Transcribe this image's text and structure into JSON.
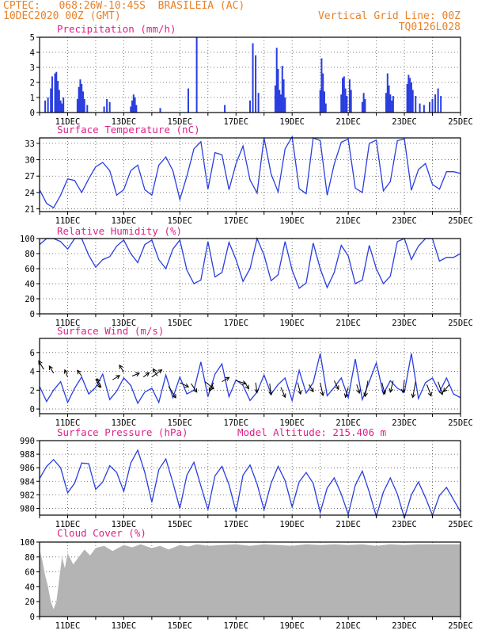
{
  "header": {
    "left_line1": "CPTEC:   068:26W-10:45S  BRASILEIA (AC)",
    "left_line2": "10DEC2020 00Z (GMT)",
    "right_line1": "Vertical Grid Line: 00Z",
    "right_line2": "TQ0126L028"
  },
  "x_tick_labels": [
    "11DEC",
    "13DEC",
    "15DEC",
    "17DEC",
    "19DEC",
    "21DEC",
    "23DEC",
    "25DEC"
  ],
  "colors": {
    "series": "#2a3ee0",
    "bars": "#2a3ee0",
    "cloud": "#b4b4b4",
    "title": "#e0208a",
    "header": "#e8822a"
  },
  "chart_data": [
    {
      "type": "bar",
      "title": "Precipitation (mm/h)",
      "ylim": [
        0,
        5
      ],
      "yticks": [
        0,
        1,
        2,
        3,
        4,
        5
      ],
      "x_unit": "days since 10DEC2020 00Z",
      "bars": [
        [
          0.2,
          0.8
        ],
        [
          0.3,
          1.0
        ],
        [
          0.4,
          1.6
        ],
        [
          0.45,
          2.4
        ],
        [
          0.55,
          2.6
        ],
        [
          0.6,
          2.7
        ],
        [
          0.65,
          2.1
        ],
        [
          0.7,
          1.5
        ],
        [
          0.75,
          0.8
        ],
        [
          0.8,
          0.6
        ],
        [
          0.85,
          1.0
        ],
        [
          1.35,
          0.9
        ],
        [
          1.4,
          1.7
        ],
        [
          1.45,
          2.2
        ],
        [
          1.5,
          1.9
        ],
        [
          1.55,
          1.4
        ],
        [
          1.6,
          0.9
        ],
        [
          1.7,
          0.5
        ],
        [
          2.3,
          0.4
        ],
        [
          2.4,
          0.9
        ],
        [
          2.5,
          0.7
        ],
        [
          3.25,
          0.4
        ],
        [
          3.3,
          0.8
        ],
        [
          3.35,
          1.2
        ],
        [
          3.4,
          1.0
        ],
        [
          3.45,
          0.5
        ],
        [
          4.3,
          0.3
        ],
        [
          5.3,
          1.6
        ],
        [
          5.6,
          5.0
        ],
        [
          6.6,
          0.5
        ],
        [
          7.5,
          0.8
        ],
        [
          7.6,
          4.6
        ],
        [
          7.7,
          3.8
        ],
        [
          7.8,
          1.3
        ],
        [
          8.4,
          1.8
        ],
        [
          8.45,
          4.3
        ],
        [
          8.5,
          2.9
        ],
        [
          8.55,
          1.5
        ],
        [
          8.6,
          1.2
        ],
        [
          8.65,
          3.1
        ],
        [
          8.7,
          2.2
        ],
        [
          8.75,
          1.0
        ],
        [
          10.0,
          1.5
        ],
        [
          10.05,
          3.6
        ],
        [
          10.1,
          2.6
        ],
        [
          10.15,
          1.4
        ],
        [
          10.2,
          0.6
        ],
        [
          10.75,
          1.2
        ],
        [
          10.8,
          2.3
        ],
        [
          10.85,
          2.4
        ],
        [
          10.9,
          1.6
        ],
        [
          10.95,
          1.1
        ],
        [
          11.05,
          2.2
        ],
        [
          11.1,
          1.5
        ],
        [
          11.5,
          0.7
        ],
        [
          11.55,
          1.3
        ],
        [
          11.6,
          0.9
        ],
        [
          12.35,
          1.3
        ],
        [
          12.4,
          2.6
        ],
        [
          12.45,
          1.8
        ],
        [
          12.5,
          1.2
        ],
        [
          12.55,
          0.8
        ],
        [
          12.6,
          1.1
        ],
        [
          13.1,
          1.9
        ],
        [
          13.15,
          2.5
        ],
        [
          13.2,
          2.3
        ],
        [
          13.25,
          2.0
        ],
        [
          13.3,
          1.5
        ],
        [
          13.4,
          1.1
        ],
        [
          13.55,
          0.6
        ],
        [
          13.7,
          0.5
        ],
        [
          13.9,
          0.7
        ],
        [
          14.0,
          0.9
        ],
        [
          14.1,
          1.2
        ],
        [
          14.2,
          1.6
        ],
        [
          14.3,
          1.1
        ]
      ]
    },
    {
      "type": "line",
      "title": "Surface Temperature (nC)",
      "ylim": [
        20.5,
        34
      ],
      "yticks": [
        21,
        24,
        27,
        30,
        33
      ],
      "x": [
        0,
        0.25,
        0.5,
        0.75,
        1,
        1.25,
        1.5,
        1.75,
        2,
        2.25,
        2.5,
        2.75,
        3,
        3.25,
        3.5,
        3.75,
        4,
        4.25,
        4.5,
        4.75,
        5,
        5.25,
        5.5,
        5.75,
        6,
        6.25,
        6.5,
        6.75,
        7,
        7.25,
        7.5,
        7.75,
        8,
        8.25,
        8.5,
        8.75,
        9,
        9.25,
        9.5,
        9.75,
        10,
        10.25,
        10.5,
        10.75,
        11,
        11.25,
        11.5,
        11.75,
        12,
        12.25,
        12.5,
        12.75,
        13,
        13.25,
        13.5,
        13.75,
        14,
        14.25,
        14.5,
        14.75,
        15
      ],
      "y": [
        24.5,
        22.0,
        21.2,
        23.5,
        26.5,
        26.2,
        24.0,
        26.5,
        28.7,
        29.5,
        28.0,
        23.5,
        24.5,
        28.0,
        29.0,
        24.5,
        23.5,
        29.0,
        30.5,
        28.0,
        22.7,
        27.0,
        32.0,
        33.3,
        24.6,
        31.3,
        30.9,
        24.5,
        29.3,
        32.5,
        26.3,
        23.9,
        34.0,
        27.4,
        24.1,
        32.0,
        34.2,
        24.7,
        23.8,
        34.0,
        33.5,
        23.5,
        29.2,
        33.2,
        33.8,
        24.8,
        24.0,
        33.0,
        33.6,
        24.3,
        26.0,
        33.5,
        33.8,
        24.4,
        28.2,
        29.3,
        25.5,
        24.6,
        27.8,
        27.8,
        27.5
      ]
    },
    {
      "type": "line",
      "title": "Relative Humidity (%)",
      "ylim": [
        0,
        100
      ],
      "yticks": [
        0,
        20,
        40,
        60,
        80,
        100
      ],
      "x": [
        0,
        0.25,
        0.5,
        0.75,
        1,
        1.25,
        1.5,
        1.75,
        2,
        2.25,
        2.5,
        2.75,
        3,
        3.25,
        3.5,
        3.75,
        4,
        4.25,
        4.5,
        4.75,
        5,
        5.25,
        5.5,
        5.75,
        6,
        6.25,
        6.5,
        6.75,
        7,
        7.25,
        7.5,
        7.75,
        8,
        8.25,
        8.5,
        8.75,
        9,
        9.25,
        9.5,
        9.75,
        10,
        10.25,
        10.5,
        10.75,
        11,
        11.25,
        11.5,
        11.75,
        12,
        12.25,
        12.5,
        12.75,
        13,
        13.25,
        13.5,
        13.75,
        14,
        14.25,
        14.5,
        14.75,
        15
      ],
      "y": [
        92,
        100,
        100,
        96,
        86,
        100,
        100,
        78,
        62,
        72,
        76,
        90,
        98,
        80,
        68,
        92,
        98,
        72,
        60,
        86,
        98,
        58,
        40,
        45,
        96,
        49,
        55,
        95,
        72,
        43,
        60,
        100,
        78,
        44,
        52,
        96,
        58,
        34,
        41,
        94,
        60,
        35,
        55,
        91,
        77,
        40,
        45,
        91,
        60,
        40,
        50,
        96,
        100,
        72,
        90,
        100,
        100,
        70,
        75,
        75,
        80
      ]
    },
    {
      "type": "line",
      "title": "Surface Wind (m/s)",
      "ylim": [
        -0.5,
        7.5
      ],
      "yticks": [
        0,
        2,
        4,
        6
      ],
      "x": [
        0,
        0.25,
        0.5,
        0.75,
        1,
        1.25,
        1.5,
        1.75,
        2,
        2.25,
        2.5,
        2.75,
        3,
        3.25,
        3.5,
        3.75,
        4,
        4.25,
        4.5,
        4.75,
        5,
        5.25,
        5.5,
        5.75,
        6,
        6.25,
        6.5,
        6.75,
        7,
        7.25,
        7.5,
        7.75,
        8,
        8.25,
        8.5,
        8.75,
        9,
        9.25,
        9.5,
        9.75,
        10,
        10.25,
        10.5,
        10.75,
        11,
        11.25,
        11.5,
        11.75,
        12,
        12.25,
        12.5,
        12.75,
        13,
        13.25,
        13.5,
        13.75,
        14,
        14.25,
        14.5,
        14.75,
        15
      ],
      "y": [
        2.4,
        0.8,
        2.0,
        2.9,
        0.7,
        2.2,
        3.4,
        1.6,
        2.3,
        3.7,
        1.0,
        1.9,
        3.3,
        2.5,
        0.6,
        1.8,
        2.2,
        0.7,
        3.6,
        1.2,
        3.4,
        1.6,
        2.0,
        5.0,
        1.3,
        3.7,
        4.8,
        1.3,
        3.1,
        2.5,
        0.9,
        1.8,
        3.6,
        1.6,
        2.6,
        3.3,
        0.9,
        4.1,
        1.7,
        2.8,
        5.9,
        1.4,
        2.3,
        3.3,
        1.2,
        5.3,
        1.0,
        2.9,
        4.9,
        1.6,
        3.0,
        2.2,
        1.8,
        5.9,
        1.1,
        2.8,
        3.3,
        1.8,
        3.3,
        1.6,
        1.2
      ],
      "arrows": [
        [
          0.15,
          4.2,
          -0.35,
          0.6
        ],
        [
          0.5,
          3.8,
          -0.3,
          0.5
        ],
        [
          1.0,
          3.4,
          -0.2,
          0.5
        ],
        [
          1.5,
          3.5,
          -0.3,
          0.4
        ],
        [
          2.0,
          3.2,
          0.3,
          -0.6
        ],
        [
          2.2,
          2.3,
          -0.3,
          0.6
        ],
        [
          2.6,
          3.1,
          0.5,
          0.3
        ],
        [
          3.0,
          3.9,
          -0.3,
          0.5
        ],
        [
          3.3,
          3.5,
          0.5,
          0.2
        ],
        [
          3.7,
          3.4,
          0.4,
          0.3
        ],
        [
          4.0,
          3.4,
          0.7,
          0.5
        ],
        [
          4.2,
          3.5,
          -0.3,
          0.5
        ],
        [
          4.6,
          2.4,
          0.5,
          -0.8
        ],
        [
          5.0,
          2.8,
          0.6,
          -0.3
        ],
        [
          5.4,
          2.7,
          0.4,
          -0.6
        ],
        [
          5.9,
          2.9,
          0.6,
          -0.5
        ],
        [
          6.2,
          2.8,
          -0.3,
          -0.6
        ],
        [
          6.5,
          2.9,
          0.5,
          0.3
        ],
        [
          7.0,
          3.0,
          0.7,
          -0.2
        ],
        [
          7.3,
          2.9,
          0.3,
          -0.5
        ],
        [
          7.7,
          2.8,
          0.1,
          -0.7
        ],
        [
          8.2,
          2.7,
          0.1,
          -0.8
        ],
        [
          8.6,
          2.3,
          0.3,
          -0.7
        ],
        [
          9.2,
          2.8,
          0.2,
          -0.8
        ],
        [
          9.6,
          2.6,
          0.3,
          -0.5
        ],
        [
          10.0,
          2.8,
          0.2,
          -0.9
        ],
        [
          10.5,
          3.0,
          0.3,
          -0.6
        ],
        [
          11.0,
          2.3,
          -0.2,
          -0.7
        ],
        [
          11.3,
          2.6,
          0.2,
          -0.6
        ],
        [
          11.7,
          3.0,
          -0.2,
          -1.1
        ],
        [
          12.2,
          2.8,
          0.2,
          -0.8
        ],
        [
          12.6,
          3.0,
          -0.2,
          -0.8
        ],
        [
          13.0,
          3.1,
          -0.1,
          -0.9
        ],
        [
          13.4,
          2.9,
          -0.2,
          -1.1
        ],
        [
          13.8,
          2.6,
          0.3,
          -0.8
        ],
        [
          14.2,
          2.9,
          0.3,
          -0.9
        ],
        [
          14.6,
          2.6,
          -0.4,
          -0.5
        ]
      ]
    },
    {
      "type": "line",
      "title": "Surface Pressure (hPa)",
      "annotation": "Model Altitude: 215.406 m",
      "ylim": [
        979,
        990
      ],
      "yticks": [
        980,
        982,
        984,
        986,
        988,
        990
      ],
      "x": [
        0,
        0.25,
        0.5,
        0.75,
        1,
        1.25,
        1.5,
        1.75,
        2,
        2.25,
        2.5,
        2.75,
        3,
        3.25,
        3.5,
        3.75,
        4,
        4.25,
        4.5,
        4.75,
        5,
        5.25,
        5.5,
        5.75,
        6,
        6.25,
        6.5,
        6.75,
        7,
        7.25,
        7.5,
        7.75,
        8,
        8.25,
        8.5,
        8.75,
        9,
        9.25,
        9.5,
        9.75,
        10,
        10.25,
        10.5,
        10.75,
        11,
        11.25,
        11.5,
        11.75,
        12,
        12.25,
        12.5,
        12.75,
        13,
        13.25,
        13.5,
        13.75,
        14,
        14.25,
        14.5,
        14.75,
        15
      ],
      "y": [
        984.4,
        986.2,
        987.2,
        986.0,
        982.3,
        983.7,
        986.7,
        986.6,
        982.8,
        983.9,
        986.3,
        985.3,
        982.5,
        986.7,
        988.6,
        985.3,
        980.9,
        985.7,
        987.3,
        983.8,
        980.0,
        984.9,
        986.8,
        983.3,
        979.8,
        984.8,
        986.2,
        983.5,
        979.5,
        984.9,
        986.4,
        983.6,
        979.8,
        983.7,
        986.2,
        984.1,
        980.2,
        983.9,
        985.3,
        983.7,
        979.4,
        983.0,
        984.5,
        982.1,
        979.1,
        983.4,
        985.5,
        982.4,
        978.8,
        982.4,
        984.5,
        982.1,
        978.6,
        982.0,
        983.9,
        981.6,
        979.0,
        981.9,
        983.1,
        981.3,
        979.5
      ]
    },
    {
      "type": "area",
      "title": "Cloud Cover (%)",
      "ylim": [
        0,
        100
      ],
      "yticks": [
        0,
        20,
        40,
        60,
        80,
        100
      ],
      "x": [
        0,
        0.1,
        0.2,
        0.3,
        0.4,
        0.5,
        0.6,
        0.7,
        0.8,
        0.9,
        1.0,
        1.2,
        1.4,
        1.6,
        1.8,
        2.0,
        2.3,
        2.6,
        3.0,
        3.3,
        3.6,
        4.0,
        4.3,
        4.6,
        5.0,
        5.3,
        5.6,
        6.0,
        6.5,
        7.0,
        7.5,
        8.0,
        8.5,
        9.0,
        9.5,
        10.0,
        10.5,
        11.0,
        11.5,
        12.0,
        12.5,
        13.0,
        13.5,
        14.0,
        14.5,
        15.0
      ],
      "y": [
        90,
        75,
        55,
        40,
        20,
        10,
        20,
        50,
        80,
        65,
        85,
        70,
        80,
        90,
        82,
        92,
        95,
        88,
        96,
        93,
        97,
        92,
        95,
        90,
        96,
        94,
        97,
        95,
        96,
        97,
        95,
        97,
        96,
        95,
        97,
        96,
        97,
        96,
        97,
        95,
        97,
        96,
        97,
        97,
        97,
        97
      ]
    }
  ]
}
